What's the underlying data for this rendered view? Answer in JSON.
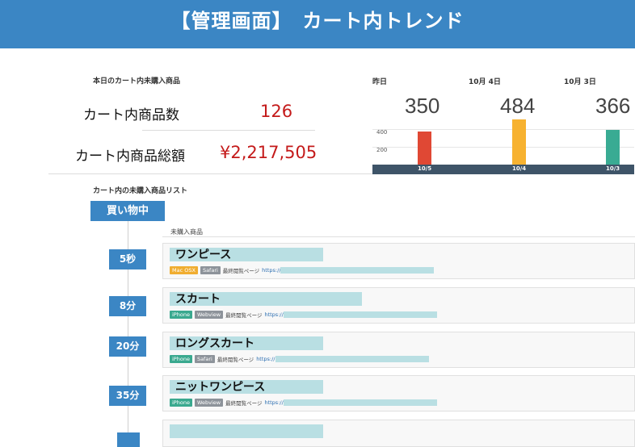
{
  "header": {
    "title": "【管理画面】　カート内トレンド"
  },
  "summary": {
    "heading": "本日のカート内未購入商品",
    "count_label": "カート内商品数",
    "count_value": "126",
    "total_label": "カート内商品総額",
    "total_value": "¥2,217,505"
  },
  "trend": {
    "columns": [
      {
        "label": "昨日",
        "value": "350"
      },
      {
        "label": "10月 4日",
        "value": "484"
      },
      {
        "label": "10月 3日",
        "value": "366"
      }
    ],
    "ticks": [
      "400",
      "200"
    ]
  },
  "chart_data": {
    "type": "bar",
    "categories": [
      "10/5",
      "10/4",
      "10/3"
    ],
    "values": [
      350,
      484,
      366
    ],
    "title": "",
    "xlabel": "",
    "ylabel": "",
    "ylim": [
      0,
      480
    ],
    "yticks": [
      200,
      400
    ],
    "colors": [
      "#e04834",
      "#f7b230",
      "#39ab93"
    ],
    "grid": true,
    "legend": "none"
  },
  "list": {
    "heading": "カート内の未購入商品リスト",
    "status": "買い物中",
    "column_header": "未購入商品",
    "last_page_label": "最終閲覧ページ",
    "url_prefix": "https://",
    "items": [
      {
        "elapsed": "5秒",
        "name": "ワンピース",
        "tags": [
          "Mac OSX",
          "Safari"
        ]
      },
      {
        "elapsed": "8分",
        "name": "スカート",
        "tags": [
          "iPhone",
          "Webview"
        ]
      },
      {
        "elapsed": "20分",
        "name": "ロングスカート",
        "tags": [
          "iPhone",
          "Safari"
        ]
      },
      {
        "elapsed": "35分",
        "name": "ニットワンピース",
        "tags": [
          "iPhone",
          "Webview"
        ]
      }
    ]
  }
}
